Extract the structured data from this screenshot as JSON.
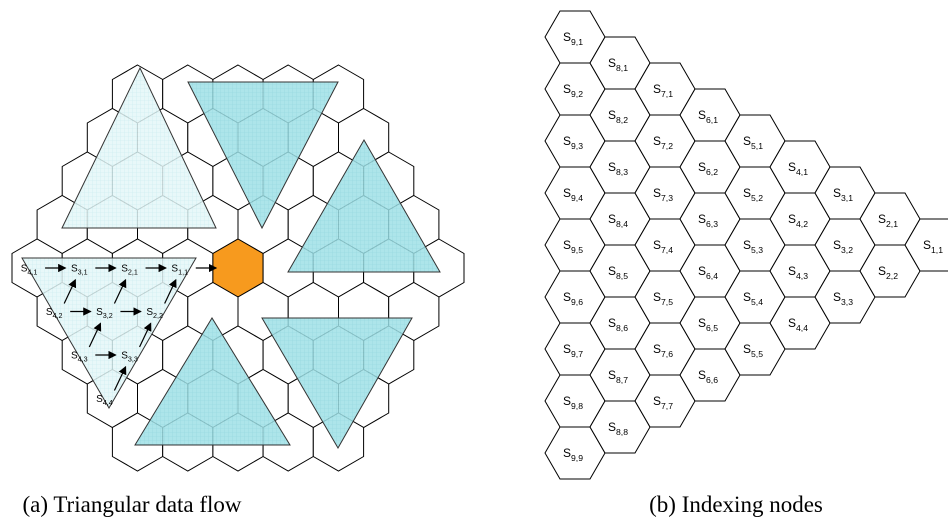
{
  "panel_a": {
    "caption": "(a) Triangular data flow",
    "nodes": [
      {
        "label": "S",
        "sub": "4,1"
      },
      {
        "label": "S",
        "sub": "3,1"
      },
      {
        "label": "S",
        "sub": "2,1"
      },
      {
        "label": "S",
        "sub": "1,1"
      },
      {
        "label": "S",
        "sub": "4,2"
      },
      {
        "label": "S",
        "sub": "3,2"
      },
      {
        "label": "S",
        "sub": "2,2"
      },
      {
        "label": "S",
        "sub": "4,3"
      },
      {
        "label": "S",
        "sub": "3,3"
      },
      {
        "label": "S",
        "sub": "4,4"
      }
    ]
  },
  "panel_b": {
    "caption": "(b) Indexing nodes",
    "nodes": [
      {
        "label": "S",
        "sub": "9,1"
      },
      {
        "label": "S",
        "sub": "9,2"
      },
      {
        "label": "S",
        "sub": "9,3"
      },
      {
        "label": "S",
        "sub": "9,4"
      },
      {
        "label": "S",
        "sub": "9,5"
      },
      {
        "label": "S",
        "sub": "9,6"
      },
      {
        "label": "S",
        "sub": "9,7"
      },
      {
        "label": "S",
        "sub": "9,8"
      },
      {
        "label": "S",
        "sub": "9,9"
      },
      {
        "label": "S",
        "sub": "8,1"
      },
      {
        "label": "S",
        "sub": "8,2"
      },
      {
        "label": "S",
        "sub": "8,3"
      },
      {
        "label": "S",
        "sub": "8,4"
      },
      {
        "label": "S",
        "sub": "8,5"
      },
      {
        "label": "S",
        "sub": "8,6"
      },
      {
        "label": "S",
        "sub": "8,7"
      },
      {
        "label": "S",
        "sub": "8,8"
      },
      {
        "label": "S",
        "sub": "7,1"
      },
      {
        "label": "S",
        "sub": "7,2"
      },
      {
        "label": "S",
        "sub": "7,3"
      },
      {
        "label": "S",
        "sub": "7,4"
      },
      {
        "label": "S",
        "sub": "7,5"
      },
      {
        "label": "S",
        "sub": "7,6"
      },
      {
        "label": "S",
        "sub": "7,7"
      },
      {
        "label": "S",
        "sub": "6,1"
      },
      {
        "label": "S",
        "sub": "6,2"
      },
      {
        "label": "S",
        "sub": "6,3"
      },
      {
        "label": "S",
        "sub": "6,4"
      },
      {
        "label": "S",
        "sub": "6,5"
      },
      {
        "label": "S",
        "sub": "6,6"
      },
      {
        "label": "S",
        "sub": "5,1"
      },
      {
        "label": "S",
        "sub": "5,2"
      },
      {
        "label": "S",
        "sub": "5,3"
      },
      {
        "label": "S",
        "sub": "5,4"
      },
      {
        "label": "S",
        "sub": "5,5"
      },
      {
        "label": "S",
        "sub": "4,1"
      },
      {
        "label": "S",
        "sub": "4,2"
      },
      {
        "label": "S",
        "sub": "4,3"
      },
      {
        "label": "S",
        "sub": "4,4"
      },
      {
        "label": "S",
        "sub": "3,1"
      },
      {
        "label": "S",
        "sub": "3,2"
      },
      {
        "label": "S",
        "sub": "3,3"
      },
      {
        "label": "S",
        "sub": "2,1"
      },
      {
        "label": "S",
        "sub": "2,2"
      },
      {
        "label": "S",
        "sub": "1,1"
      }
    ]
  }
}
